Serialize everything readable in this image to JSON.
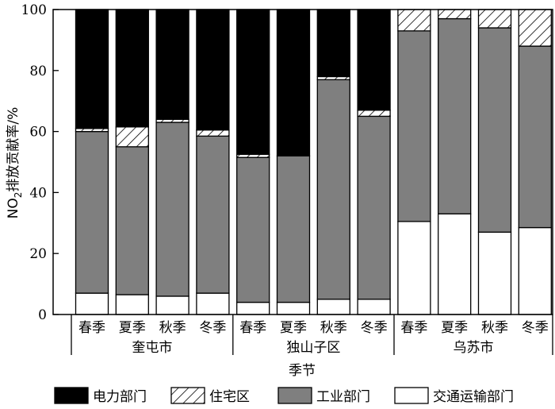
{
  "chart_data": {
    "type": "bar",
    "stacked": true,
    "title": "",
    "xlabel": "季节",
    "ylabel_main": "NO",
    "ylabel_sub": "2",
    "ylabel_rest": "排放贡献率/%",
    "ylim": [
      0,
      100
    ],
    "yticks": [
      "0",
      "20",
      "40",
      "60",
      "80",
      "100"
    ],
    "categories": [
      "春季",
      "夏季",
      "秋季",
      "冬季",
      "春季",
      "夏季",
      "秋季",
      "冬季",
      "春季",
      "夏季",
      "秋季",
      "冬季"
    ],
    "groups": [
      "奎屯市",
      "独山子区",
      "乌苏市"
    ],
    "grid": false,
    "legend_position": "bottom",
    "series": [
      {
        "name": "交通运输部门",
        "fill": "#ffffff",
        "pattern": "none",
        "values": [
          7,
          6.5,
          6,
          7,
          4,
          4,
          5,
          5,
          30.5,
          33,
          27,
          28.5
        ]
      },
      {
        "name": "工业部门",
        "fill": "#7f7f7f",
        "pattern": "none",
        "values": [
          53,
          48.5,
          57,
          51.5,
          47.5,
          48,
          72,
          60,
          62.5,
          64,
          67,
          59.5
        ]
      },
      {
        "name": "住宅区",
        "fill": "#ffffff",
        "pattern": "hatch",
        "values": [
          1,
          6.5,
          1,
          2,
          1,
          0,
          1,
          2,
          7,
          3,
          6,
          12
        ]
      },
      {
        "name": "电力部门",
        "fill": "#000000",
        "pattern": "none",
        "values": [
          39,
          38.5,
          36,
          39.5,
          47.5,
          48,
          22,
          33,
          0,
          0,
          0,
          0
        ]
      }
    ],
    "legend_order": [
      "电力部门",
      "住宅区",
      "工业部门",
      "交通运输部门"
    ]
  }
}
